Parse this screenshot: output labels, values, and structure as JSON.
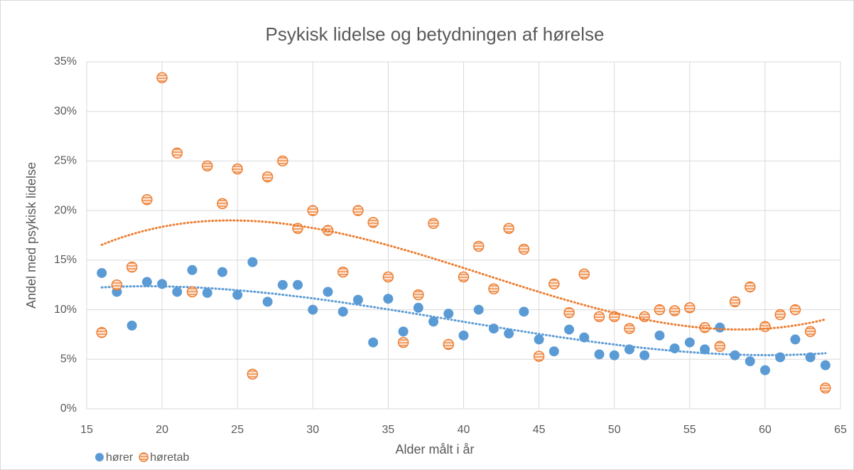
{
  "chart_data": {
    "type": "scatter",
    "title": "Psykisk lidelse og betydningen af hørelse",
    "x_label": "Alder målt i år",
    "y_label": "Andel med psykisk lidelse",
    "xlim": [
      15,
      65
    ],
    "xticks": [
      15,
      20,
      25,
      30,
      35,
      40,
      45,
      50,
      55,
      60,
      65
    ],
    "ylim": [
      0,
      35
    ],
    "yticks": [
      {
        "value": 0,
        "label": "0%"
      },
      {
        "value": 5,
        "label": "5%"
      },
      {
        "value": 10,
        "label": "10%"
      },
      {
        "value": 15,
        "label": "15%"
      },
      {
        "value": 20,
        "label": "20%"
      },
      {
        "value": 25,
        "label": "25%"
      },
      {
        "value": 30,
        "label": "30%"
      },
      {
        "value": 35,
        "label": "35%"
      }
    ],
    "grid": true,
    "legend": "bottom-left",
    "trendline": {
      "type": "polynomial",
      "order": 3
    },
    "x": [
      16,
      17,
      18,
      19,
      20,
      21,
      22,
      23,
      24,
      25,
      26,
      27,
      28,
      29,
      30,
      31,
      32,
      33,
      34,
      35,
      36,
      37,
      38,
      39,
      40,
      41,
      42,
      43,
      44,
      45,
      46,
      47,
      48,
      49,
      50,
      51,
      52,
      53,
      54,
      55,
      56,
      57,
      58,
      59,
      60,
      61,
      62,
      63,
      64
    ],
    "series": [
      {
        "name": "hører",
        "color": "#5b9bd5",
        "values": [
          13.7,
          11.8,
          8.4,
          12.8,
          12.6,
          11.8,
          14.0,
          11.7,
          13.8,
          11.5,
          14.8,
          10.8,
          12.5,
          12.5,
          10.0,
          11.8,
          9.8,
          11.0,
          6.7,
          11.1,
          7.8,
          10.2,
          8.8,
          9.6,
          7.4,
          10.0,
          8.1,
          7.6,
          9.8,
          7.0,
          5.8,
          8.0,
          7.2,
          5.5,
          5.4,
          6.0,
          5.4,
          7.4,
          6.1,
          6.7,
          6.0,
          8.2,
          5.4,
          4.8,
          3.9,
          5.2,
          7.0,
          5.2,
          4.4
        ]
      },
      {
        "name": "høretab",
        "color": "#ed7d31",
        "values": [
          7.7,
          12.5,
          14.3,
          21.1,
          33.4,
          25.8,
          11.8,
          24.5,
          20.7,
          24.2,
          3.5,
          23.4,
          25.0,
          18.2,
          20.0,
          18.0,
          13.8,
          20.0,
          18.8,
          13.3,
          6.7,
          11.5,
          18.7,
          6.5,
          13.3,
          16.4,
          12.1,
          18.2,
          16.1,
          5.3,
          12.6,
          9.7,
          13.6,
          9.3,
          9.3,
          8.1,
          9.3,
          10.0,
          9.9,
          10.2,
          8.2,
          6.3,
          10.8,
          12.3,
          8.3,
          9.5,
          10.0,
          7.8,
          2.1
        ]
      }
    ]
  }
}
